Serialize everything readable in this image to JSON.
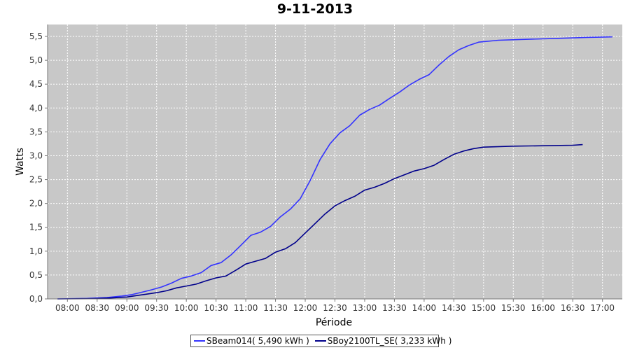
{
  "chart_data": {
    "type": "line",
    "title": "9-11-2013",
    "xlabel": "Période",
    "ylabel": "Watts",
    "ylim": [
      0,
      5.75
    ],
    "ytick_labels": [
      "0,0",
      "0,5",
      "1,0",
      "1,5",
      "2,0",
      "2,5",
      "3,0",
      "3,5",
      "4,0",
      "4,5",
      "5,0",
      "5,5"
    ],
    "xtick_labels": [
      "08:00",
      "08:30",
      "09:00",
      "09:30",
      "10:00",
      "10:30",
      "11:00",
      "11:30",
      "12:00",
      "12:30",
      "13:00",
      "13:30",
      "14:00",
      "14:30",
      "15:00",
      "15:30",
      "16:00",
      "16:30",
      "17:00"
    ],
    "grid": true,
    "legend_position": "bottom",
    "series": [
      {
        "name": "SBeam014( 5,490 kWh )",
        "color": "#3333ff",
        "points": [
          [
            "07:50",
            0
          ],
          [
            "08:20",
            0.01
          ],
          [
            "08:40",
            0.03
          ],
          [
            "08:55",
            0.06
          ],
          [
            "09:05",
            0.09
          ],
          [
            "09:15",
            0.14
          ],
          [
            "09:25",
            0.19
          ],
          [
            "09:35",
            0.25
          ],
          [
            "09:45",
            0.33
          ],
          [
            "09:55",
            0.43
          ],
          [
            "10:05",
            0.48
          ],
          [
            "10:15",
            0.55
          ],
          [
            "10:25",
            0.7
          ],
          [
            "10:35",
            0.76
          ],
          [
            "10:45",
            0.92
          ],
          [
            "10:55",
            1.12
          ],
          [
            "11:05",
            1.33
          ],
          [
            "11:15",
            1.4
          ],
          [
            "11:25",
            1.52
          ],
          [
            "11:35",
            1.72
          ],
          [
            "11:45",
            1.88
          ],
          [
            "11:55",
            2.1
          ],
          [
            "12:05",
            2.48
          ],
          [
            "12:15",
            2.92
          ],
          [
            "12:25",
            3.25
          ],
          [
            "12:35",
            3.48
          ],
          [
            "12:45",
            3.63
          ],
          [
            "12:55",
            3.85
          ],
          [
            "13:05",
            3.97
          ],
          [
            "13:15",
            4.06
          ],
          [
            "13:25",
            4.2
          ],
          [
            "13:35",
            4.33
          ],
          [
            "13:45",
            4.48
          ],
          [
            "13:55",
            4.6
          ],
          [
            "14:05",
            4.7
          ],
          [
            "14:15",
            4.9
          ],
          [
            "14:25",
            5.08
          ],
          [
            "14:35",
            5.22
          ],
          [
            "14:45",
            5.31
          ],
          [
            "14:55",
            5.38
          ],
          [
            "15:15",
            5.42
          ],
          [
            "15:45",
            5.44
          ],
          [
            "16:15",
            5.46
          ],
          [
            "16:45",
            5.48
          ],
          [
            "17:10",
            5.49
          ]
        ]
      },
      {
        "name": "SBoy2100TL_SE( 3,233 kWh )",
        "color": "#00008b",
        "points": [
          [
            "07:50",
            0
          ],
          [
            "08:25",
            0.005
          ],
          [
            "08:45",
            0.02
          ],
          [
            "09:00",
            0.04
          ],
          [
            "09:10",
            0.07
          ],
          [
            "09:20",
            0.1
          ],
          [
            "09:30",
            0.13
          ],
          [
            "09:40",
            0.17
          ],
          [
            "09:50",
            0.23
          ],
          [
            "10:00",
            0.27
          ],
          [
            "10:10",
            0.31
          ],
          [
            "10:20",
            0.38
          ],
          [
            "10:30",
            0.44
          ],
          [
            "10:40",
            0.48
          ],
          [
            "10:50",
            0.6
          ],
          [
            "11:00",
            0.73
          ],
          [
            "11:10",
            0.79
          ],
          [
            "11:20",
            0.85
          ],
          [
            "11:30",
            0.98
          ],
          [
            "11:40",
            1.05
          ],
          [
            "11:50",
            1.18
          ],
          [
            "12:00",
            1.38
          ],
          [
            "12:10",
            1.58
          ],
          [
            "12:20",
            1.78
          ],
          [
            "12:30",
            1.95
          ],
          [
            "12:40",
            2.06
          ],
          [
            "12:50",
            2.15
          ],
          [
            "13:00",
            2.28
          ],
          [
            "13:10",
            2.34
          ],
          [
            "13:20",
            2.42
          ],
          [
            "13:30",
            2.52
          ],
          [
            "13:40",
            2.6
          ],
          [
            "13:50",
            2.68
          ],
          [
            "14:00",
            2.73
          ],
          [
            "14:10",
            2.8
          ],
          [
            "14:20",
            2.92
          ],
          [
            "14:30",
            3.03
          ],
          [
            "14:40",
            3.1
          ],
          [
            "14:50",
            3.15
          ],
          [
            "15:00",
            3.18
          ],
          [
            "15:30",
            3.2
          ],
          [
            "16:00",
            3.21
          ],
          [
            "16:30",
            3.22
          ],
          [
            "16:40",
            3.233
          ]
        ]
      }
    ]
  }
}
